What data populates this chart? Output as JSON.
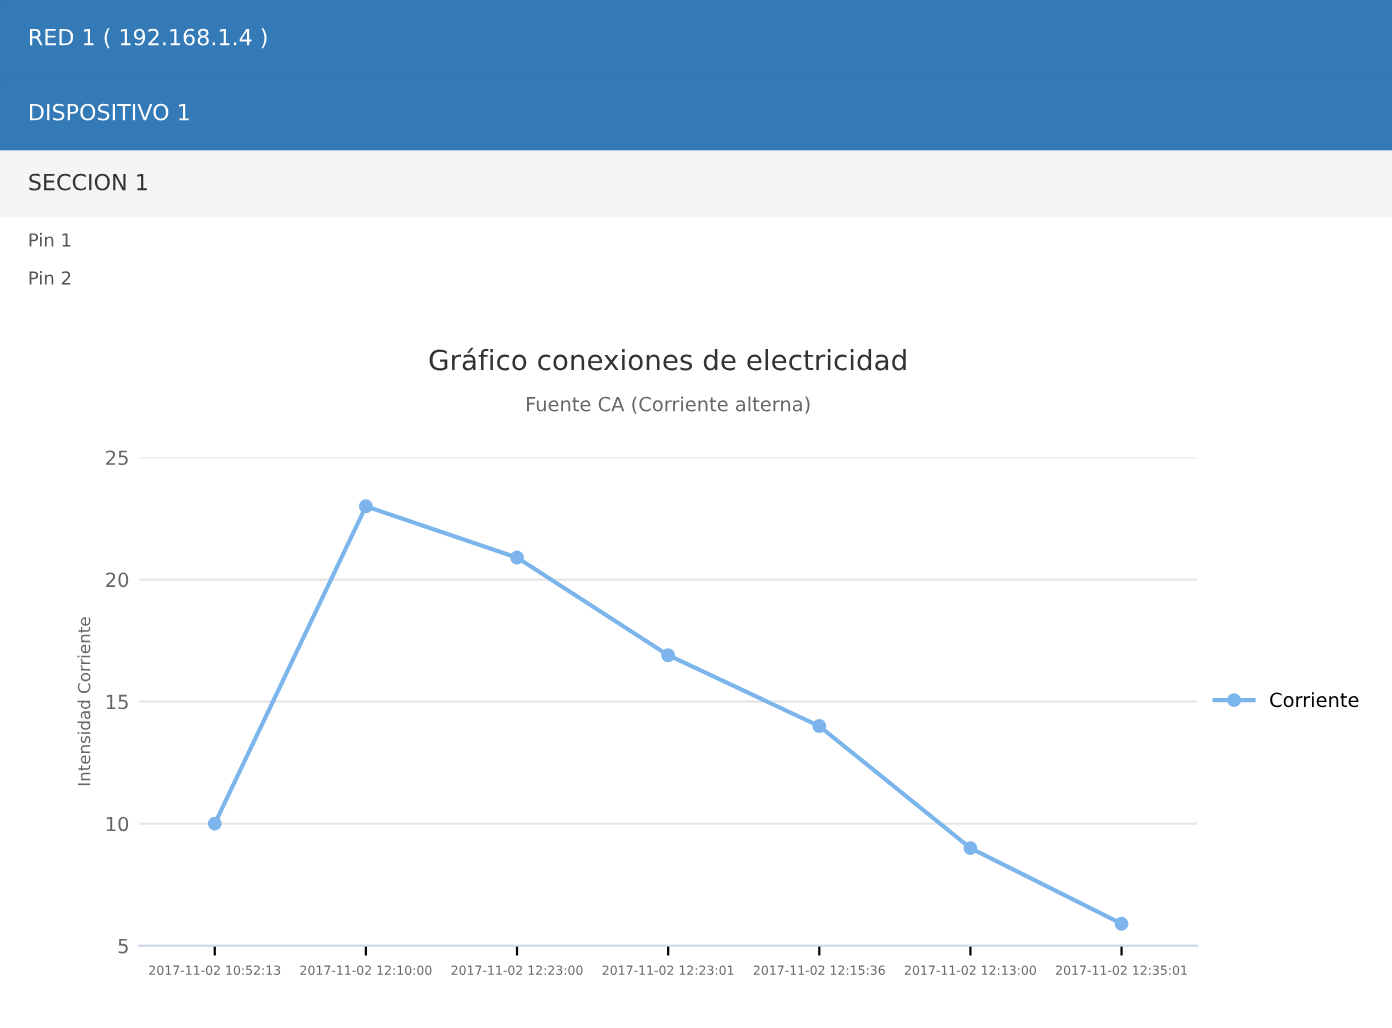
{
  "chart_data": {
    "type": "line",
    "title": "Gráfico conexiones de electricidad",
    "subtitle": "Fuente CA (Corriente alterna)",
    "ylabel": "Intensidad Corriente",
    "annotations": [
      "RED 1 ( 192.168.1.4 )",
      "DISPOSITIVO 1",
      "SECCION 1",
      "Pin 1",
      "Pin 2"
    ],
    "categories": [
      "2017-11-02 10:52:13",
      "2017-11-02 12:10:00",
      "2017-11-02 12:23:00",
      "2017-11-02 12:23:01",
      "2017-11-02 12:15:36",
      "2017-11-02 12:13:00",
      "2017-11-02 12:35:01"
    ],
    "series": [
      {
        "name": "Corriente",
        "color": "#7cb5ec",
        "values": [
          10.0,
          23.0,
          20.9,
          16.9,
          14.0,
          9.0,
          5.9
        ]
      }
    ],
    "ylim": [
      5,
      25
    ],
    "yticks": [
      5,
      10,
      15,
      20,
      25
    ],
    "grid": "y",
    "legend": "right",
    "marker": "circle",
    "line_style": "solid"
  }
}
